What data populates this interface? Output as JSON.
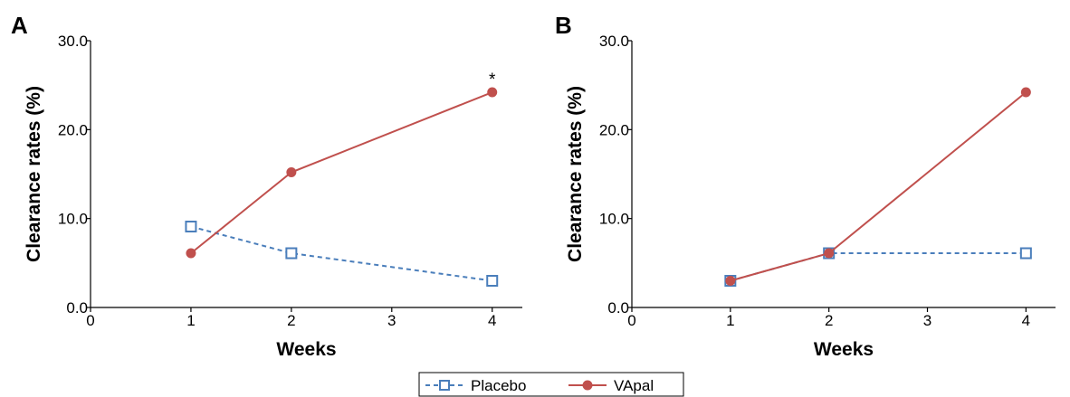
{
  "chart_data": [
    {
      "type": "line",
      "panel_label": "A",
      "xlabel": "Weeks",
      "ylabel": "Clearance rates (%)",
      "x_ticks": [
        "0",
        "1",
        "2",
        "3",
        "4"
      ],
      "y_ticks": [
        "0.0",
        "10.0",
        "20.0",
        "30.0"
      ],
      "ylim": [
        0,
        30
      ],
      "x": [
        1,
        2,
        4
      ],
      "x_labels": [
        "1",
        "2",
        "4"
      ],
      "series": [
        {
          "name": "Placebo",
          "values": [
            9.1,
            6.1,
            3.0
          ],
          "color": "#4a7ebb",
          "dashed": true,
          "marker": "open-square"
        },
        {
          "name": "VApal",
          "values": [
            6.1,
            15.2,
            24.2
          ],
          "color": "#c0504d",
          "dashed": false,
          "marker": "filled-circle"
        }
      ],
      "annotations": [
        {
          "text": "*",
          "series": "VApal",
          "x": 4
        }
      ],
      "grid": false
    },
    {
      "type": "line",
      "panel_label": "B",
      "xlabel": "Weeks",
      "ylabel": "Clearance rates (%)",
      "x_ticks": [
        "0",
        "1",
        "2",
        "3",
        "4"
      ],
      "y_ticks": [
        "0.0",
        "10.0",
        "20.0",
        "30.0"
      ],
      "ylim": [
        0,
        30
      ],
      "x": [
        1,
        2,
        4
      ],
      "x_labels": [
        "1",
        "2",
        "4"
      ],
      "series": [
        {
          "name": "Placebo",
          "values": [
            3.0,
            6.1,
            6.1
          ],
          "color": "#4a7ebb",
          "dashed": true,
          "marker": "open-square"
        },
        {
          "name": "VApal",
          "values": [
            3.0,
            6.1,
            24.2
          ],
          "color": "#c0504d",
          "dashed": false,
          "marker": "filled-circle"
        }
      ],
      "annotations": [],
      "grid": false
    }
  ],
  "legend": {
    "placement": "bottom-center",
    "items": [
      {
        "label": "Placebo",
        "color": "#4a7ebb",
        "marker": "open-square",
        "dashed": true
      },
      {
        "label": "VApal",
        "color": "#c0504d",
        "marker": "filled-circle",
        "dashed": false
      }
    ]
  }
}
